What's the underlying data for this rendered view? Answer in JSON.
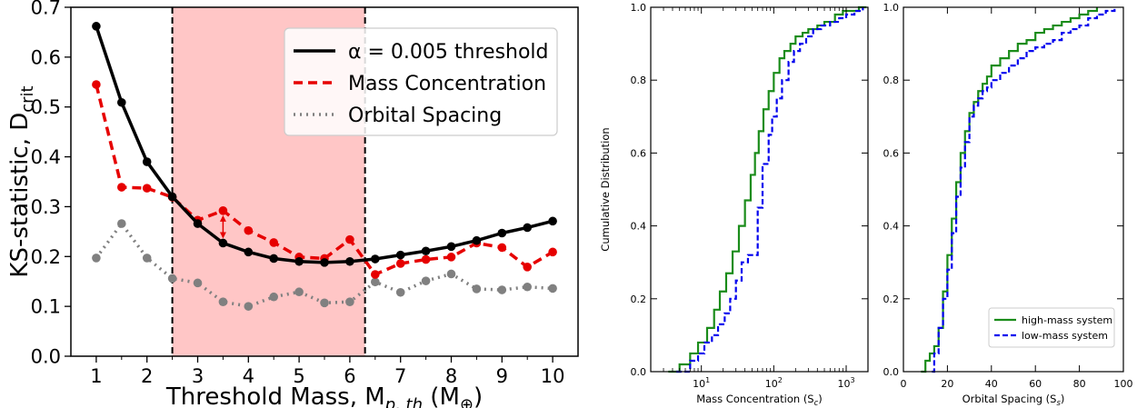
{
  "chart_data": [
    {
      "type": "line",
      "ylabel": "KS-statistic, D",
      "ylabel_sub": "crit",
      "xlabel": "Threshold Mass, M",
      "xlabel_sub": "p, th",
      "xlabel_unit": "(M",
      "xlabel_unit_sub": "⊕",
      "xlabel_unit_close": ")",
      "xlim": [
        0.5,
        10.5
      ],
      "ylim": [
        0.0,
        0.7
      ],
      "xticks": [
        "1",
        "2",
        "3",
        "4",
        "5",
        "6",
        "7",
        "8",
        "9",
        "10"
      ],
      "yticks": [
        "0.0",
        "0.1",
        "0.2",
        "0.3",
        "0.4",
        "0.5",
        "0.6",
        "0.7"
      ],
      "shaded_region": [
        2.5,
        6.3
      ],
      "legend_position": "top-right",
      "x": [
        1,
        1.5,
        2,
        2.5,
        3,
        3.5,
        4,
        4.5,
        5,
        5.5,
        6,
        6.5,
        7,
        7.5,
        8,
        8.5,
        9,
        9.5,
        10
      ],
      "series": [
        {
          "name": "α = 0.005 threshold",
          "color": "#000000",
          "style": "solid",
          "values": [
            0.662,
            0.509,
            0.39,
            0.32,
            0.266,
            0.227,
            0.209,
            0.196,
            0.19,
            0.188,
            0.19,
            0.195,
            0.203,
            0.211,
            0.22,
            0.232,
            0.247,
            0.258,
            0.271
          ]
        },
        {
          "name": "Mass Concentration",
          "color": "#e60000",
          "style": "dashed",
          "values": [
            0.545,
            0.339,
            0.337,
            0.319,
            0.273,
            0.292,
            0.252,
            0.228,
            0.199,
            0.196,
            0.234,
            0.164,
            0.186,
            0.194,
            0.199,
            0.227,
            0.218,
            0.179,
            0.209
          ]
        },
        {
          "name": "Orbital Spacing",
          "color": "#808080",
          "style": "dotted",
          "values": [
            0.197,
            0.266,
            0.197,
            0.156,
            0.147,
            0.109,
            0.1,
            0.119,
            0.129,
            0.107,
            0.109,
            0.149,
            0.128,
            0.151,
            0.165,
            0.135,
            0.133,
            0.139,
            0.136
          ]
        }
      ]
    },
    {
      "type": "line",
      "xlabel": "Mass Concentration (S",
      "xlabel_sub": "c",
      "xlabel_close": ")",
      "ylabel": "Cumulative Distribution",
      "xscale": "log",
      "xlim": [
        2,
        2000
      ],
      "ylim": [
        0.0,
        1.0
      ],
      "xticks": [
        {
          "base": "10",
          "exp": "1",
          "value": 10
        },
        {
          "base": "10",
          "exp": "2",
          "value": 100
        },
        {
          "base": "10",
          "exp": "3",
          "value": 1000
        }
      ],
      "yticks": [
        "0.0",
        "0.2",
        "0.4",
        "0.6",
        "0.8",
        "1.0"
      ],
      "series": [
        {
          "name": "high-mass system",
          "color": "#1a8c1a",
          "style": "solid",
          "x": [
            3.5,
            5,
            7,
            9,
            12,
            15,
            18,
            22,
            27,
            33,
            40,
            48,
            55,
            62,
            72,
            85,
            100,
            120,
            140,
            170,
            200,
            250,
            300,
            400,
            500,
            700,
            900,
            1200,
            1500,
            1900
          ],
          "values": [
            0.0,
            0.02,
            0.05,
            0.08,
            0.12,
            0.17,
            0.22,
            0.27,
            0.33,
            0.4,
            0.47,
            0.54,
            0.6,
            0.66,
            0.72,
            0.77,
            0.82,
            0.86,
            0.88,
            0.9,
            0.92,
            0.93,
            0.94,
            0.95,
            0.96,
            0.98,
            0.99,
            0.99,
            1.0,
            1.0
          ]
        },
        {
          "name": "low-mass system",
          "color": "#0000ee",
          "style": "dashed",
          "x": [
            4.5,
            7,
            9,
            11,
            14,
            17,
            21,
            25,
            30,
            36,
            44,
            50,
            60,
            70,
            85,
            95,
            110,
            130,
            160,
            190,
            230,
            280,
            350,
            450,
            600,
            800,
            1000,
            1300,
            1700
          ],
          "values": [
            0.0,
            0.03,
            0.05,
            0.08,
            0.1,
            0.13,
            0.16,
            0.2,
            0.25,
            0.3,
            0.32,
            0.32,
            0.45,
            0.57,
            0.65,
            0.7,
            0.75,
            0.8,
            0.85,
            0.88,
            0.9,
            0.92,
            0.94,
            0.95,
            0.96,
            0.97,
            0.98,
            0.99,
            1.0
          ]
        }
      ]
    },
    {
      "type": "line",
      "xlabel": "Orbital Spacing (S",
      "xlabel_sub": "s",
      "xlabel_close": ")",
      "xlim": [
        0,
        100
      ],
      "ylim": [
        0.0,
        1.0
      ],
      "xticks": [
        "0",
        "20",
        "40",
        "60",
        "80",
        "100"
      ],
      "yticks": [
        "0.0",
        "0.2",
        "0.4",
        "0.6",
        "0.8",
        "1.0"
      ],
      "legend_position": "bottom-right",
      "series": [
        {
          "name": "high-mass system",
          "color": "#1a8c1a",
          "style": "solid",
          "x": [
            8,
            10,
            12,
            14,
            16,
            18,
            20,
            22,
            24,
            26,
            28,
            30,
            32,
            34,
            36,
            38,
            40,
            44,
            48,
            52,
            56,
            60,
            64,
            68,
            72,
            76,
            80,
            84,
            88
          ],
          "values": [
            0.0,
            0.03,
            0.05,
            0.07,
            0.12,
            0.22,
            0.32,
            0.42,
            0.52,
            0.6,
            0.66,
            0.71,
            0.74,
            0.77,
            0.79,
            0.81,
            0.84,
            0.86,
            0.88,
            0.9,
            0.91,
            0.93,
            0.94,
            0.95,
            0.96,
            0.97,
            0.98,
            0.99,
            1.0
          ]
        },
        {
          "name": "low-mass system",
          "color": "#0000ee",
          "style": "dashed",
          "x": [
            13,
            14,
            16,
            18,
            20,
            22,
            24,
            26,
            28,
            30,
            32,
            34,
            36,
            38,
            40,
            44,
            48,
            52,
            56,
            60,
            64,
            68,
            72,
            76,
            80,
            84,
            88,
            92,
            96
          ],
          "values": [
            0.0,
            0.05,
            0.12,
            0.2,
            0.28,
            0.38,
            0.48,
            0.56,
            0.63,
            0.7,
            0.73,
            0.75,
            0.77,
            0.78,
            0.8,
            0.82,
            0.84,
            0.86,
            0.88,
            0.89,
            0.9,
            0.91,
            0.93,
            0.94,
            0.95,
            0.97,
            0.98,
            0.99,
            1.0
          ]
        }
      ]
    }
  ]
}
